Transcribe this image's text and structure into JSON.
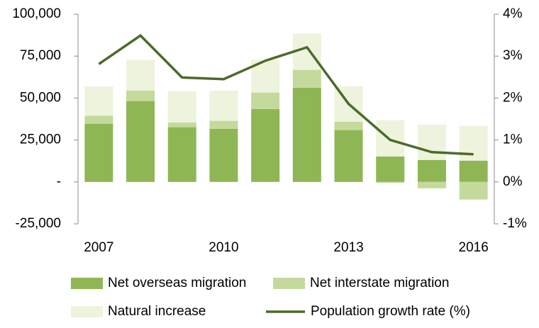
{
  "chart_data": {
    "type": "bar",
    "categories": [
      "2007",
      null,
      null,
      "2010",
      null,
      null,
      "2013",
      null,
      null,
      "2016"
    ],
    "series": [
      {
        "name": "Net overseas migration",
        "type": "bar",
        "color": "#8fb655",
        "values": [
          34700,
          48200,
          32600,
          31700,
          43500,
          56200,
          30900,
          15200,
          13100,
          12700
        ]
      },
      {
        "name": "Net interstate migration",
        "type": "bar",
        "color": "#c4da9c",
        "values": [
          4800,
          6300,
          2900,
          4700,
          9800,
          10600,
          5000,
          -500,
          -3800,
          -10500
        ]
      },
      {
        "name": "Natural increase",
        "type": "bar",
        "color": "#eef3dd",
        "values": [
          17500,
          18200,
          18600,
          18100,
          19400,
          21600,
          21200,
          21600,
          21100,
          20700
        ]
      },
      {
        "name": "Population growth rate (%)",
        "type": "line",
        "axis": "y2",
        "color": "#4b6b2a",
        "values": [
          2.81,
          3.49,
          2.49,
          2.45,
          2.89,
          3.21,
          1.86,
          1.0,
          0.71,
          0.66
        ]
      }
    ],
    "ylim": [
      -25000,
      100000
    ],
    "yticks": [
      {
        "value": -25000,
        "label": "-25,000"
      },
      {
        "value": 0,
        "label": "-"
      },
      {
        "value": 25000,
        "label": "25,000"
      },
      {
        "value": 50000,
        "label": "50,000"
      },
      {
        "value": 75000,
        "label": "75,000"
      },
      {
        "value": 100000,
        "label": "100,000"
      }
    ],
    "y2lim": [
      -1,
      4
    ],
    "y2ticks": [
      {
        "value": -1,
        "label": "-1%"
      },
      {
        "value": 0,
        "label": "0%"
      },
      {
        "value": 1,
        "label": "1%"
      },
      {
        "value": 2,
        "label": "2%"
      },
      {
        "value": 3,
        "label": "3%"
      },
      {
        "value": 4,
        "label": "4%"
      }
    ],
    "legend": "bottom"
  }
}
